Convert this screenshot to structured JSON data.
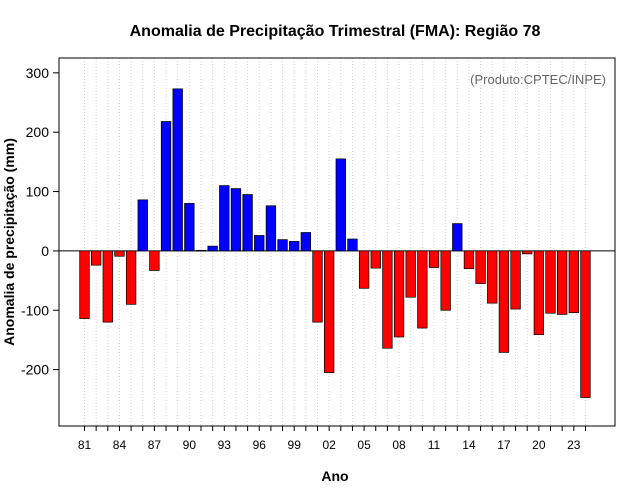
{
  "chart_data": {
    "type": "bar",
    "title": "Anomalia de Precipitação Trimestral (FMA): Região 78",
    "xlabel": "Ano",
    "ylabel": "Anomalia de precipitação (mm)",
    "credit": "(Produto:CPTEC/INPE)",
    "ylim": [
      -295,
      325
    ],
    "yticks": [
      -200,
      -100,
      0,
      100,
      200,
      300
    ],
    "x_tick_labels": [
      "81",
      "84",
      "87",
      "90",
      "93",
      "96",
      "99",
      "02",
      "05",
      "08",
      "11",
      "14",
      "17",
      "20",
      "23"
    ],
    "grid": "vertical dotted",
    "colors": {
      "positive": "#0000ff",
      "negative": "#ff0000"
    },
    "categories": [
      "1981",
      "1982",
      "1983",
      "1984",
      "1985",
      "1986",
      "1987",
      "1988",
      "1989",
      "1990",
      "1991",
      "1992",
      "1993",
      "1994",
      "1995",
      "1996",
      "1997",
      "1998",
      "1999",
      "2000",
      "2001",
      "2002",
      "2003",
      "2004",
      "2005",
      "2006",
      "2007",
      "2008",
      "2009",
      "2010",
      "2011",
      "2012",
      "2013",
      "2014",
      "2015",
      "2016",
      "2017",
      "2018",
      "2019",
      "2020",
      "2021",
      "2022",
      "2023",
      "2024"
    ],
    "values": [
      -114,
      -24,
      -120,
      -9,
      -90,
      86,
      -33,
      218,
      273,
      80,
      1,
      8,
      110,
      105,
      95,
      26,
      76,
      19,
      16,
      31,
      -120,
      -205,
      155,
      20,
      -63,
      -29,
      -164,
      -145,
      -78,
      -130,
      -28,
      -100,
      46,
      -30,
      -55,
      -88,
      -171,
      -98,
      -5,
      -141,
      -105,
      -107,
      -104,
      -247
    ]
  }
}
